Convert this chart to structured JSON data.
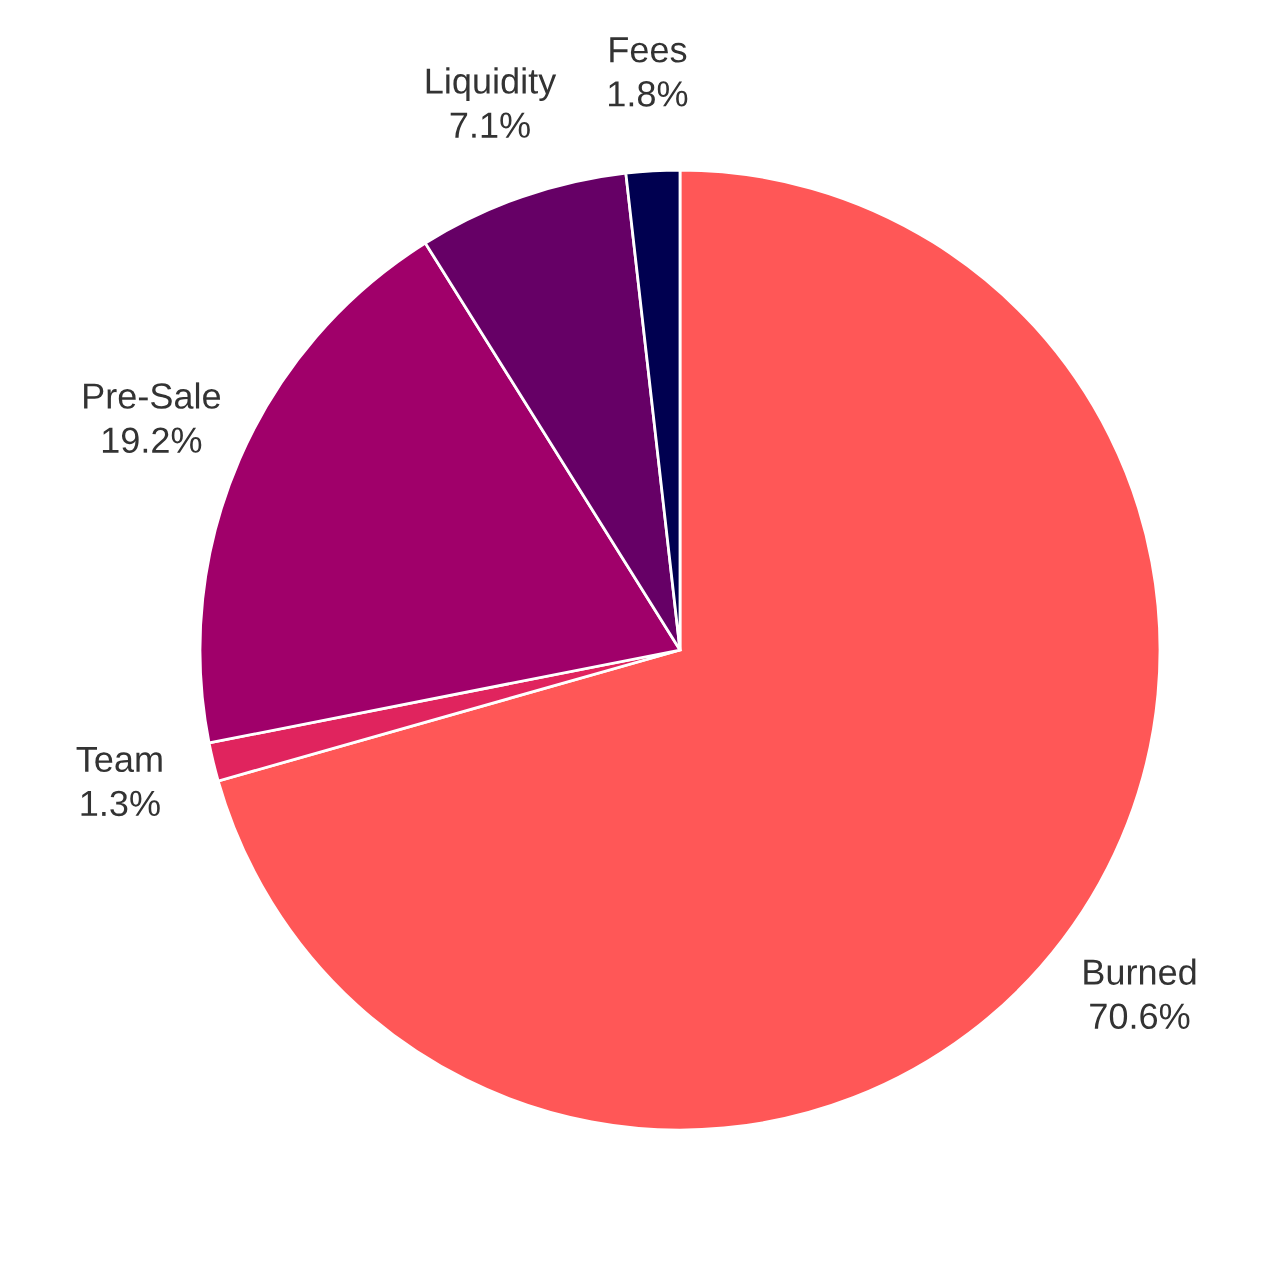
{
  "chart_data": {
    "type": "pie",
    "categories": [
      "Burned",
      "Team",
      "Pre-Sale",
      "Liquidity",
      "Fees"
    ],
    "values": [
      70.6,
      1.3,
      19.2,
      7.1,
      1.8
    ],
    "value_labels": [
      "70.6%",
      "1.3%",
      "19.2%",
      "7.1%",
      "1.8%"
    ],
    "colors": [
      "#ff5757",
      "#e0245e",
      "#a0006a",
      "#660066",
      "#000050"
    ],
    "legend": false
  }
}
